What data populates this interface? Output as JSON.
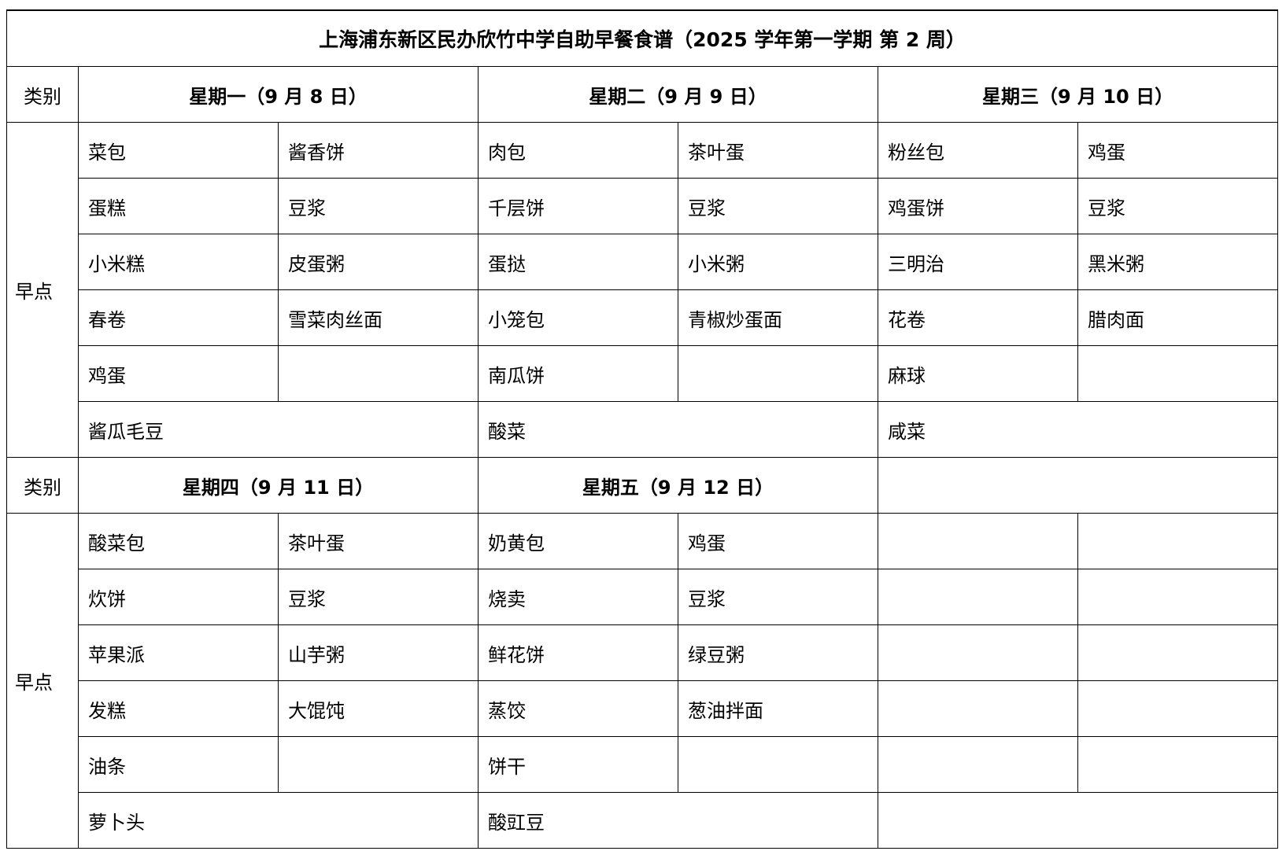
{
  "title": "上海浦东新区民办欣竹中学自助早餐食谱（2025 学年第一学期  第 2 周）",
  "category_label": "类别",
  "meal_label": "早点",
  "week1": {
    "days": [
      "星期一（9 月 8 日）",
      "星期二（9 月 9 日）",
      "星期三（9 月 10 日）"
    ],
    "rows": [
      [
        "菜包",
        "酱香饼",
        "肉包",
        "茶叶蛋",
        "粉丝包",
        "鸡蛋"
      ],
      [
        "蛋糕",
        "豆浆",
        "千层饼",
        "豆浆",
        "鸡蛋饼",
        "豆浆"
      ],
      [
        "小米糕",
        "皮蛋粥",
        "蛋挞",
        "小米粥",
        "三明治",
        "黑米粥"
      ],
      [
        "春卷",
        "雪菜肉丝面",
        "小笼包",
        "青椒炒蛋面",
        "花卷",
        "腊肉面"
      ],
      [
        "鸡蛋",
        "",
        "南瓜饼",
        "",
        "麻球",
        ""
      ]
    ],
    "sides": [
      "酱瓜毛豆",
      "酸菜",
      "咸菜"
    ]
  },
  "week2": {
    "days": [
      "星期四（9 月 11 日）",
      "星期五（9 月 12 日）",
      ""
    ],
    "rows": [
      [
        "酸菜包",
        "茶叶蛋",
        "奶黄包",
        "鸡蛋",
        "",
        ""
      ],
      [
        "炊饼",
        "豆浆",
        "烧卖",
        "豆浆",
        "",
        ""
      ],
      [
        "苹果派",
        "山芋粥",
        "鲜花饼",
        "绿豆粥",
        "",
        ""
      ],
      [
        "发糕",
        "大馄饨",
        "蒸饺",
        "葱油拌面",
        "",
        ""
      ],
      [
        "油条",
        "",
        "饼干",
        "",
        "",
        ""
      ]
    ],
    "sides": [
      "萝卜头",
      "酸豇豆",
      ""
    ]
  }
}
